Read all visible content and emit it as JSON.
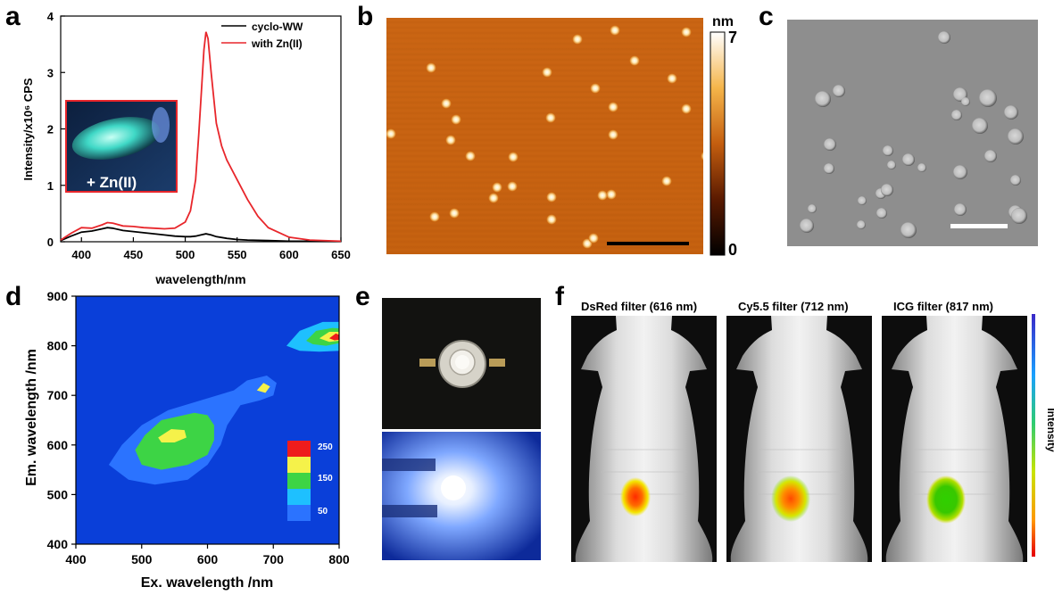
{
  "panels": {
    "a": {
      "letter": "a"
    },
    "b": {
      "letter": "b"
    },
    "c": {
      "letter": "c"
    },
    "d": {
      "letter": "d"
    },
    "e": {
      "letter": "e"
    },
    "f": {
      "letter": "f"
    }
  },
  "chart_data": [
    {
      "panel": "a",
      "type": "line",
      "xlabel": "wavelength/nm",
      "ylabel": "Intensity/x10⁶ CPS",
      "xlim": [
        380,
        650
      ],
      "ylim": [
        0,
        4
      ],
      "xticks": [
        400,
        450,
        500,
        550,
        600,
        650
      ],
      "yticks": [
        0,
        1,
        2,
        3,
        4
      ],
      "legend_placement": "top-right",
      "inset_label": "+ Zn(II)",
      "series": [
        {
          "name": "cyclo-WW",
          "color": "#000000",
          "x": [
            380,
            390,
            400,
            410,
            420,
            425,
            430,
            440,
            450,
            460,
            470,
            480,
            490,
            500,
            505,
            510,
            515,
            520,
            525,
            530,
            540,
            550,
            560,
            580,
            600,
            620,
            650
          ],
          "y": [
            0.02,
            0.1,
            0.17,
            0.19,
            0.23,
            0.25,
            0.24,
            0.2,
            0.18,
            0.16,
            0.14,
            0.12,
            0.1,
            0.09,
            0.09,
            0.1,
            0.12,
            0.14,
            0.12,
            0.09,
            0.06,
            0.04,
            0.03,
            0.02,
            0.01,
            0.01,
            0.01
          ]
        },
        {
          "name": "with Zn(II)",
          "color": "#e8262b",
          "x": [
            380,
            390,
            400,
            410,
            420,
            425,
            430,
            440,
            450,
            460,
            470,
            480,
            490,
            500,
            505,
            510,
            513,
            516,
            518,
            520,
            522,
            525,
            530,
            535,
            540,
            550,
            560,
            570,
            580,
            600,
            620,
            650
          ],
          "y": [
            0.03,
            0.15,
            0.25,
            0.24,
            0.3,
            0.34,
            0.33,
            0.28,
            0.27,
            0.25,
            0.24,
            0.23,
            0.24,
            0.35,
            0.55,
            1.1,
            1.9,
            2.8,
            3.4,
            3.72,
            3.6,
            3.0,
            2.1,
            1.7,
            1.45,
            1.1,
            0.75,
            0.45,
            0.25,
            0.08,
            0.03,
            0.01
          ]
        }
      ]
    },
    {
      "panel": "b",
      "type": "heatmap",
      "colorbar_unit": "nm",
      "colorbar_range": [
        0,
        7
      ],
      "colorbar_tick_labels": [
        "7",
        "0"
      ]
    },
    {
      "panel": "d",
      "type": "heatmap",
      "xlabel": "Ex. wavelength /nm",
      "ylabel": "Em. wavelength /nm",
      "xlim": [
        400,
        800
      ],
      "ylim": [
        400,
        900
      ],
      "xticks": [
        400,
        500,
        600,
        700,
        800
      ],
      "yticks": [
        400,
        500,
        600,
        700,
        800,
        900
      ],
      "legend_placement": "bottom-right",
      "legend_labels": [
        "250",
        "150",
        "50"
      ],
      "levels": [
        {
          "value": 50,
          "color": "#2b73ff"
        },
        {
          "value": 100,
          "color": "#1ec0ff"
        },
        {
          "value": 150,
          "color": "#3dd445"
        },
        {
          "value": 200,
          "color": "#f5f24a"
        },
        {
          "value": 250,
          "color": "#ee1c1c"
        }
      ],
      "background_color": "#0a3fd9"
    }
  ],
  "panel_f": {
    "filters": [
      "DsRed filter (616 nm)",
      "Cy5.5 filter (712 nm)",
      "ICG filter (817 nm)"
    ],
    "colorbar_label": "Intensity"
  }
}
